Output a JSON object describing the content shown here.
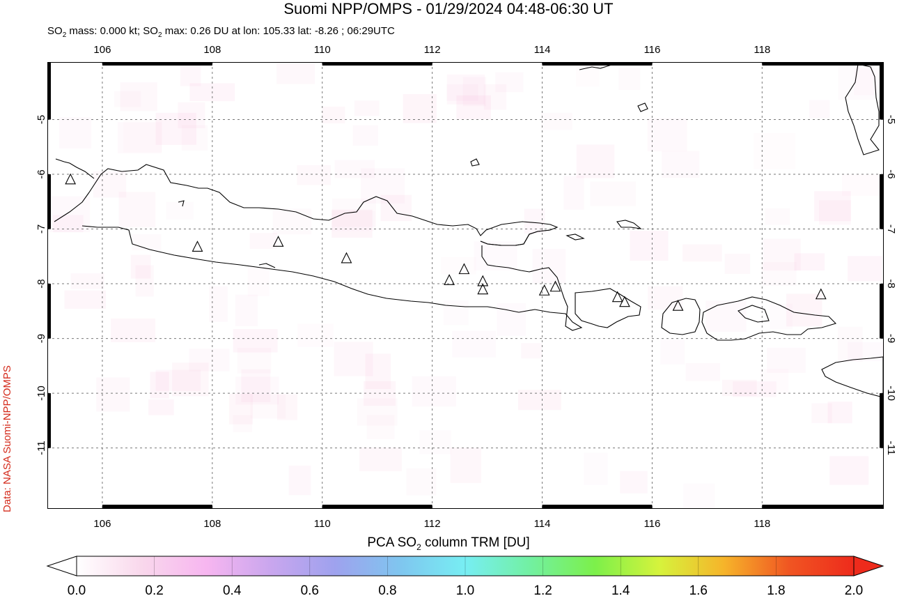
{
  "title": "Suomi NPP/OMPS - 01/29/2024 04:48-06:30 UT",
  "subtitle": {
    "parts": [
      "SO",
      "2",
      " mass: 0.000 kt; SO",
      "2",
      " max: 0.26 DU at lon: 105.33 lat: -8.26 ; 06:29UTC"
    ]
  },
  "credit": "Data: NASA Suomi-NPP/OMPS",
  "map": {
    "lon_range": [
      105.0,
      120.2
    ],
    "lat_range": [
      -12.1,
      -3.95
    ],
    "lon_ticks": [
      106,
      108,
      110,
      112,
      114,
      116,
      118
    ],
    "lon_tick_labels": [
      "106",
      "108",
      "110",
      "112",
      "114",
      "116",
      "118"
    ],
    "lat_ticks": [
      -5,
      -6,
      -7,
      -8,
      -9,
      -10,
      -11
    ],
    "lat_tick_labels": [
      "-5",
      "-6",
      "-7",
      "-8",
      "-9",
      "-10",
      "-11"
    ],
    "grid": "dashed",
    "volcanoes": [
      [
        105.42,
        -6.1
      ],
      [
        107.73,
        -7.33
      ],
      [
        109.2,
        -7.24
      ],
      [
        110.44,
        -7.54
      ],
      [
        112.31,
        -7.94
      ],
      [
        112.58,
        -7.74
      ],
      [
        112.92,
        -7.96
      ],
      [
        112.92,
        -8.11
      ],
      [
        114.04,
        -8.13
      ],
      [
        114.24,
        -8.06
      ],
      [
        115.37,
        -8.25
      ],
      [
        115.5,
        -8.34
      ],
      [
        116.47,
        -8.41
      ],
      [
        119.07,
        -8.2
      ]
    ]
  },
  "colorbar": {
    "title_parts": [
      "PCA SO",
      "2",
      " column TRM [DU]"
    ],
    "tick_labels": [
      "0.0",
      "0.2",
      "0.4",
      "0.6",
      "0.8",
      "1.0",
      "1.2",
      "1.4",
      "1.6",
      "1.8",
      "2.0"
    ],
    "range": [
      0.0,
      2.0
    ],
    "colors": [
      "#ffffff",
      "#f9d8ec",
      "#f7b6f0",
      "#c9a6ee",
      "#9ea2ee",
      "#7fc6ef",
      "#77eef3",
      "#72f0a2",
      "#7cf04a",
      "#d6f33c",
      "#f6b42a",
      "#f05522",
      "#ee2b1c"
    ]
  }
}
